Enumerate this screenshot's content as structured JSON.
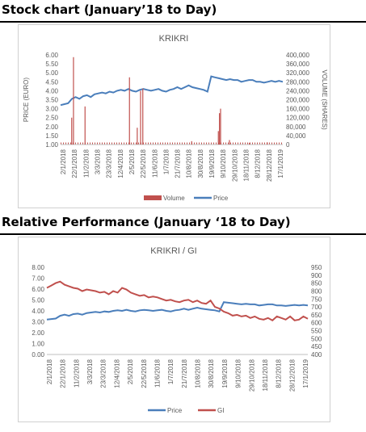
{
  "sections": [
    {
      "title": "Stock chart (January’18 to Day)"
    },
    {
      "title": "Relative Performance (January ‘18 to Day)"
    }
  ],
  "chart_data": [
    {
      "type": "bar+line",
      "title": "KRIKRI",
      "ylabel_left": "PRICE (EURO)",
      "ylabel_right": "VOLUME (SHARES)",
      "ylim_left": [
        1.0,
        6.0
      ],
      "ylim_right": [
        0,
        400000
      ],
      "yticks_left": [
        "6.00",
        "5.50",
        "5.00",
        "4.50",
        "4.00",
        "3.50",
        "3.00",
        "2.50",
        "2.00",
        "1.50",
        "1.00"
      ],
      "yticks_right": [
        "400,000",
        "360,000",
        "320,000",
        "280,000",
        "240,000",
        "200,000",
        "160,000",
        "120,000",
        "80,000",
        "40,000",
        "0"
      ],
      "x_ticks": [
        "2/1/2018",
        "22/1/2018",
        "11/2/2018",
        "3/3/2018",
        "23/3/2018",
        "12/4/2018",
        "2/5/2018",
        "22/5/2018",
        "11/6/2018",
        "1/7/2018",
        "21/7/2018",
        "10/8/2018",
        "30/8/2018",
        "19/9/2018",
        "9/10/2018",
        "29/10/2018",
        "18/11/2018",
        "8/12/2018",
        "28/12/2018",
        "17/1/2019"
      ],
      "legend": [
        "Volume",
        "Price"
      ],
      "legend_position": "bottom",
      "series": [
        {
          "name": "Price",
          "kind": "line",
          "color": "#4a7ebb",
          "values": [
            3.2,
            3.25,
            3.3,
            3.55,
            3.65,
            3.55,
            3.7,
            3.75,
            3.65,
            3.8,
            3.85,
            3.9,
            3.85,
            3.95,
            3.9,
            4.0,
            4.05,
            4.0,
            4.1,
            4.0,
            3.95,
            4.05,
            4.1,
            4.05,
            4.0,
            4.05,
            4.1,
            4.0,
            3.95,
            4.05,
            4.1,
            4.2,
            4.1,
            4.2,
            4.3,
            4.2,
            4.15,
            4.1,
            4.05,
            3.95,
            4.8,
            4.75,
            4.7,
            4.65,
            4.6,
            4.65,
            4.6,
            4.6,
            4.5,
            4.55,
            4.6,
            4.6,
            4.5,
            4.5,
            4.45,
            4.5,
            4.55,
            4.5,
            4.55,
            4.5
          ]
        },
        {
          "name": "Volume",
          "kind": "bar",
          "color": "#c0504d",
          "spikes": [
            [
              0.05,
              120000
            ],
            [
              0.058,
              390000
            ],
            [
              0.11,
              170000
            ],
            [
              0.31,
              300000
            ],
            [
              0.345,
              75000
            ],
            [
              0.36,
              240000
            ],
            [
              0.37,
              250000
            ],
            [
              0.59,
              15000
            ],
            [
              0.71,
              60000
            ],
            [
              0.715,
              140000
            ],
            [
              0.72,
              160000
            ],
            [
              0.76,
              20000
            ],
            [
              0.85,
              8000
            ],
            [
              0.93,
              10000
            ]
          ]
        }
      ]
    },
    {
      "type": "line",
      "title": "KRIKRI / GI",
      "ylim_left": [
        0,
        8
      ],
      "ylim_right": [
        400,
        950
      ],
      "yticks_left": [
        "8.00",
        "7.00",
        "6.00",
        "5.00",
        "4.00",
        "3.00",
        "2.00",
        "1.00",
        "0.00"
      ],
      "yticks_right": [
        "950",
        "900",
        "850",
        "800",
        "750",
        "700",
        "650",
        "600",
        "550",
        "500",
        "450",
        "400"
      ],
      "x_ticks": [
        "2/1/2018",
        "22/1/2018",
        "11/2/2018",
        "3/3/2018",
        "23/3/2018",
        "12/4/2018",
        "2/5/2018",
        "22/5/2018",
        "11/6/2018",
        "1/7/2018",
        "21/7/2018",
        "10/8/2018",
        "30/8/2018",
        "19/9/2018",
        "9/10/2018",
        "29/10/2018",
        "18/11/2018",
        "8/12/2018",
        "28/12/2018",
        "17/1/2019"
      ],
      "legend": [
        "Price",
        "GI"
      ],
      "legend_position": "bottom",
      "series": [
        {
          "name": "Price",
          "axis": "left",
          "color": "#4a7ebb",
          "values": [
            3.2,
            3.25,
            3.3,
            3.55,
            3.65,
            3.55,
            3.7,
            3.75,
            3.65,
            3.8,
            3.85,
            3.9,
            3.85,
            3.95,
            3.9,
            4.0,
            4.05,
            4.0,
            4.1,
            4.0,
            3.95,
            4.05,
            4.1,
            4.05,
            4.0,
            4.05,
            4.1,
            4.0,
            3.95,
            4.05,
            4.1,
            4.2,
            4.1,
            4.2,
            4.3,
            4.2,
            4.15,
            4.1,
            4.05,
            3.95,
            4.8,
            4.75,
            4.7,
            4.65,
            4.6,
            4.65,
            4.6,
            4.6,
            4.5,
            4.55,
            4.6,
            4.6,
            4.5,
            4.5,
            4.45,
            4.5,
            4.55,
            4.5,
            4.55,
            4.5
          ]
        },
        {
          "name": "GI",
          "axis": "right",
          "color": "#c0504d",
          "values": [
            820,
            835,
            850,
            860,
            840,
            830,
            820,
            815,
            800,
            810,
            805,
            800,
            790,
            795,
            780,
            800,
            790,
            820,
            810,
            790,
            780,
            770,
            775,
            760,
            765,
            760,
            750,
            740,
            745,
            735,
            730,
            740,
            745,
            730,
            740,
            725,
            720,
            740,
            700,
            690,
            670,
            660,
            645,
            650,
            640,
            645,
            630,
            640,
            625,
            620,
            630,
            615,
            640,
            630,
            620,
            640,
            615,
            620,
            640,
            625
          ]
        }
      ]
    }
  ]
}
